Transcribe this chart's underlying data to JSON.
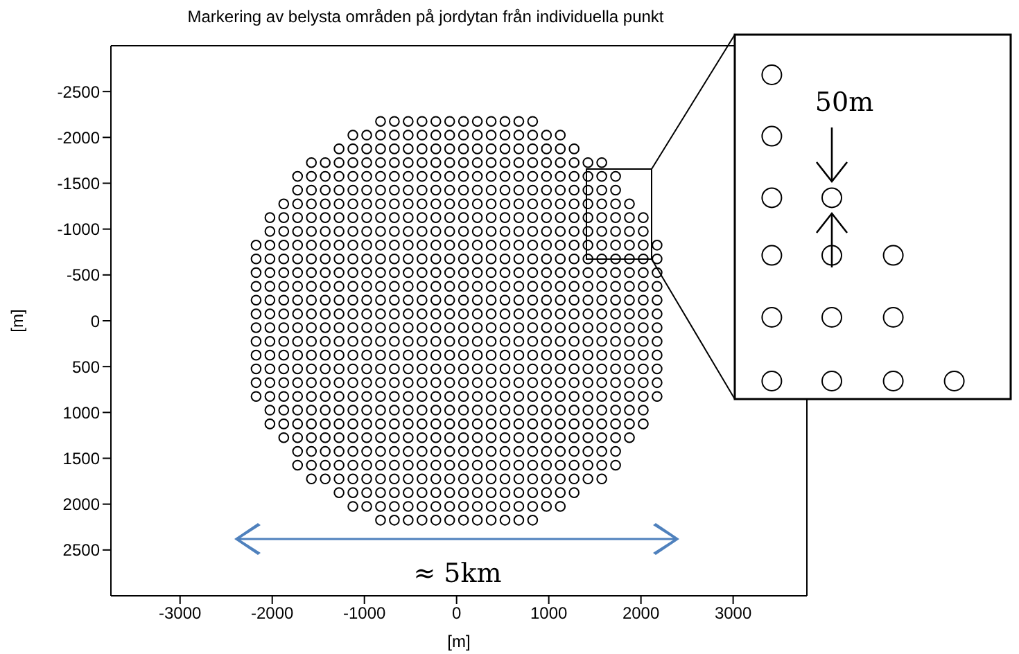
{
  "chart_data": {
    "type": "scatter",
    "title": "Markering av belysta områden på jordytan från individuella punkt",
    "xlabel": "[m]",
    "ylabel": "[m]",
    "annotations": [
      "50m",
      "≈ 5km"
    ],
    "color": "#000000",
    "marker": "circle",
    "xlim": [
      -3750,
      3800
    ],
    "ylim": [
      3000,
      -3000
    ],
    "xticks": [
      -3000,
      -2000,
      -1000,
      0,
      1000,
      2000,
      3000
    ],
    "yticks": [
      -2500,
      -2000,
      -1500,
      -1000,
      -500,
      0,
      500,
      1000,
      1500,
      2000,
      2500
    ],
    "series": [
      {
        "x": [
          -825,
          -675,
          -525,
          -375,
          -225,
          -75,
          75,
          225,
          375,
          525,
          675,
          825
        ],
        "values": [
          -2175,
          -2175,
          -2175,
          -2175,
          -2175,
          -2175,
          -2175,
          -2175,
          -2175,
          -2175,
          -2175,
          -2175
        ]
      },
      {
        "x": [
          -1125,
          -975,
          -825,
          -675,
          -525,
          -375,
          -225,
          -75,
          75,
          225,
          375,
          525,
          675,
          825,
          975,
          1125
        ],
        "values": [
          -2025,
          -2025,
          -2025,
          -2025,
          -2025,
          -2025,
          -2025,
          -2025,
          -2025,
          -2025,
          -2025,
          -2025,
          -2025,
          -2025,
          -2025,
          -2025
        ]
      },
      {
        "x": [
          -1275,
          -1125,
          -975,
          -825,
          -675,
          -525,
          -375,
          -225,
          -75,
          75,
          225,
          375,
          525,
          675,
          825,
          975,
          1125,
          1275
        ],
        "values": [
          -1875,
          -1875,
          -1875,
          -1875,
          -1875,
          -1875,
          -1875,
          -1875,
          -1875,
          -1875,
          -1875,
          -1875,
          -1875,
          -1875,
          -1875,
          -1875,
          -1875,
          -1875
        ]
      },
      {
        "x": [
          -1575,
          -1425,
          -1275,
          -1125,
          -975,
          -825,
          -675,
          -525,
          -375,
          -225,
          -75,
          75,
          225,
          375,
          525,
          675,
          825,
          975,
          1125,
          1275,
          1425,
          1575
        ],
        "values": [
          -1725,
          -1725,
          -1725,
          -1725,
          -1725,
          -1725,
          -1725,
          -1725,
          -1725,
          -1725,
          -1725,
          -1725,
          -1725,
          -1725,
          -1725,
          -1725,
          -1725,
          -1725,
          -1725,
          -1725,
          -1725,
          -1725
        ]
      },
      {
        "x": [
          -1725,
          -1575,
          -1425,
          -1275,
          -1125,
          -975,
          -825,
          -675,
          -525,
          -375,
          -225,
          -75,
          75,
          225,
          375,
          525,
          675,
          825,
          975,
          1125,
          1275,
          1425,
          1575,
          1725
        ],
        "values": [
          -1575,
          -1575,
          -1575,
          -1575,
          -1575,
          -1575,
          -1575,
          -1575,
          -1575,
          -1575,
          -1575,
          -1575,
          -1575,
          -1575,
          -1575,
          -1575,
          -1575,
          -1575,
          -1575,
          -1575,
          -1575,
          -1575,
          -1575,
          -1575
        ]
      },
      {
        "x": [
          -1725,
          -1575,
          -1425,
          -1275,
          -1125,
          -975,
          -825,
          -675,
          -525,
          -375,
          -225,
          -75,
          75,
          225,
          375,
          525,
          675,
          825,
          975,
          1125,
          1275,
          1425,
          1575,
          1725
        ],
        "values": [
          -1425,
          -1425,
          -1425,
          -1425,
          -1425,
          -1425,
          -1425,
          -1425,
          -1425,
          -1425,
          -1425,
          -1425,
          -1425,
          -1425,
          -1425,
          -1425,
          -1425,
          -1425,
          -1425,
          -1425,
          -1425,
          -1425,
          -1425,
          -1425
        ]
      },
      {
        "x": [
          -1875,
          -1725,
          -1575,
          -1425,
          -1275,
          -1125,
          -975,
          -825,
          -675,
          -525,
          -375,
          -225,
          -75,
          75,
          225,
          375,
          525,
          675,
          825,
          975,
          1125,
          1275,
          1425,
          1575,
          1725,
          1875
        ],
        "values": [
          -1275,
          -1275,
          -1275,
          -1275,
          -1275,
          -1275,
          -1275,
          -1275,
          -1275,
          -1275,
          -1275,
          -1275,
          -1275,
          -1275,
          -1275,
          -1275,
          -1275,
          -1275,
          -1275,
          -1275,
          -1275,
          -1275,
          -1275,
          -1275,
          -1275,
          -1275
        ]
      },
      {
        "x": [
          -2025,
          -1875,
          -1725,
          -1575,
          -1425,
          -1275,
          -1125,
          -975,
          -825,
          -675,
          -525,
          -375,
          -225,
          -75,
          75,
          225,
          375,
          525,
          675,
          825,
          975,
          1125,
          1275,
          1425,
          1575,
          1725,
          1875,
          2025
        ],
        "values": [
          -1125,
          -1125,
          -1125,
          -1125,
          -1125,
          -1125,
          -1125,
          -1125,
          -1125,
          -1125,
          -1125,
          -1125,
          -1125,
          -1125,
          -1125,
          -1125,
          -1125,
          -1125,
          -1125,
          -1125,
          -1125,
          -1125,
          -1125,
          -1125,
          -1125,
          -1125,
          -1125,
          -1125
        ]
      },
      {
        "x": [
          -2025,
          -1875,
          -1725,
          -1575,
          -1425,
          -1275,
          -1125,
          -975,
          -825,
          -675,
          -525,
          -375,
          -225,
          -75,
          75,
          225,
          375,
          525,
          675,
          825,
          975,
          1125,
          1275,
          1425,
          1575,
          1725,
          1875,
          2025
        ],
        "values": [
          -975,
          -975,
          -975,
          -975,
          -975,
          -975,
          -975,
          -975,
          -975,
          -975,
          -975,
          -975,
          -975,
          -975,
          -975,
          -975,
          -975,
          -975,
          -975,
          -975,
          -975,
          -975,
          -975,
          -975,
          -975,
          -975,
          -975,
          -975
        ]
      },
      {
        "x": [
          -2175,
          -2025,
          -1875,
          -1725,
          -1575,
          -1425,
          -1275,
          -1125,
          -975,
          -825,
          -675,
          -525,
          -375,
          -225,
          -75,
          75,
          225,
          375,
          525,
          675,
          825,
          975,
          1125,
          1275,
          1425,
          1575,
          1725,
          1875,
          2025,
          2175
        ],
        "values": [
          -825,
          -825,
          -825,
          -825,
          -825,
          -825,
          -825,
          -825,
          -825,
          -825,
          -825,
          -825,
          -825,
          -825,
          -825,
          -825,
          -825,
          -825,
          -825,
          -825,
          -825,
          -825,
          -825,
          -825,
          -825,
          -825,
          -825,
          -825,
          -825,
          -825
        ]
      },
      {
        "x": [
          -2175,
          -2025,
          -1875,
          -1725,
          -1575,
          -1425,
          -1275,
          -1125,
          -975,
          -825,
          -675,
          -525,
          -375,
          -225,
          -75,
          75,
          225,
          375,
          525,
          675,
          825,
          975,
          1125,
          1275,
          1425,
          1575,
          1725,
          1875,
          2025,
          2175
        ],
        "values": [
          -675,
          -675,
          -675,
          -675,
          -675,
          -675,
          -675,
          -675,
          -675,
          -675,
          -675,
          -675,
          -675,
          -675,
          -675,
          -675,
          -675,
          -675,
          -675,
          -675,
          -675,
          -675,
          -675,
          -675,
          -675,
          -675,
          -675,
          -675,
          -675,
          -675
        ]
      },
      {
        "x": [
          -2175,
          -2025,
          -1875,
          -1725,
          -1575,
          -1425,
          -1275,
          -1125,
          -975,
          -825,
          -675,
          -525,
          -375,
          -225,
          -75,
          75,
          225,
          375,
          525,
          675,
          825,
          975,
          1125,
          1275,
          1425,
          1575,
          1725,
          1875,
          2025,
          2175
        ],
        "values": [
          -525,
          -525,
          -525,
          -525,
          -525,
          -525,
          -525,
          -525,
          -525,
          -525,
          -525,
          -525,
          -525,
          -525,
          -525,
          -525,
          -525,
          -525,
          -525,
          -525,
          -525,
          -525,
          -525,
          -525,
          -525,
          -525,
          -525,
          -525,
          -525,
          -525
        ]
      },
      {
        "x": [
          -2175,
          -2025,
          -1875,
          -1725,
          -1575,
          -1425,
          -1275,
          -1125,
          -975,
          -825,
          -675,
          -525,
          -375,
          -225,
          -75,
          75,
          225,
          375,
          525,
          675,
          825,
          975,
          1125,
          1275,
          1425,
          1575,
          1725,
          1875,
          2025,
          2175
        ],
        "values": [
          -375,
          -375,
          -375,
          -375,
          -375,
          -375,
          -375,
          -375,
          -375,
          -375,
          -375,
          -375,
          -375,
          -375,
          -375,
          -375,
          -375,
          -375,
          -375,
          -375,
          -375,
          -375,
          -375,
          -375,
          -375,
          -375,
          -375,
          -375,
          -375,
          -375
        ]
      },
      {
        "x": [
          -2175,
          -2025,
          -1875,
          -1725,
          -1575,
          -1425,
          -1275,
          -1125,
          -975,
          -825,
          -675,
          -525,
          -375,
          -225,
          -75,
          75,
          225,
          375,
          525,
          675,
          825,
          975,
          1125,
          1275,
          1425,
          1575,
          1725,
          1875,
          2025,
          2175
        ],
        "values": [
          -225,
          -225,
          -225,
          -225,
          -225,
          -225,
          -225,
          -225,
          -225,
          -225,
          -225,
          -225,
          -225,
          -225,
          -225,
          -225,
          -225,
          -225,
          -225,
          -225,
          -225,
          -225,
          -225,
          -225,
          -225,
          -225,
          -225,
          -225,
          -225,
          -225
        ]
      },
      {
        "x": [
          -2175,
          -2025,
          -1875,
          -1725,
          -1575,
          -1425,
          -1275,
          -1125,
          -975,
          -825,
          -675,
          -525,
          -375,
          -225,
          -75,
          75,
          225,
          375,
          525,
          675,
          825,
          975,
          1125,
          1275,
          1425,
          1575,
          1725,
          1875,
          2025,
          2175
        ],
        "values": [
          -75,
          -75,
          -75,
          -75,
          -75,
          -75,
          -75,
          -75,
          -75,
          -75,
          -75,
          -75,
          -75,
          -75,
          -75,
          -75,
          -75,
          -75,
          -75,
          -75,
          -75,
          -75,
          -75,
          -75,
          -75,
          -75,
          -75,
          -75,
          -75,
          -75
        ]
      },
      {
        "x": [
          -2175,
          -2025,
          -1875,
          -1725,
          -1575,
          -1425,
          -1275,
          -1125,
          -975,
          -825,
          -675,
          -525,
          -375,
          -225,
          -75,
          75,
          225,
          375,
          525,
          675,
          825,
          975,
          1125,
          1275,
          1425,
          1575,
          1725,
          1875,
          2025,
          2175
        ],
        "values": [
          75,
          75,
          75,
          75,
          75,
          75,
          75,
          75,
          75,
          75,
          75,
          75,
          75,
          75,
          75,
          75,
          75,
          75,
          75,
          75,
          75,
          75,
          75,
          75,
          75,
          75,
          75,
          75,
          75,
          75
        ]
      },
      {
        "x": [
          -2175,
          -2025,
          -1875,
          -1725,
          -1575,
          -1425,
          -1275,
          -1125,
          -975,
          -825,
          -675,
          -525,
          -375,
          -225,
          -75,
          75,
          225,
          375,
          525,
          675,
          825,
          975,
          1125,
          1275,
          1425,
          1575,
          1725,
          1875,
          2025,
          2175
        ],
        "values": [
          225,
          225,
          225,
          225,
          225,
          225,
          225,
          225,
          225,
          225,
          225,
          225,
          225,
          225,
          225,
          225,
          225,
          225,
          225,
          225,
          225,
          225,
          225,
          225,
          225,
          225,
          225,
          225,
          225,
          225
        ]
      },
      {
        "x": [
          -2175,
          -2025,
          -1875,
          -1725,
          -1575,
          -1425,
          -1275,
          -1125,
          -975,
          -825,
          -675,
          -525,
          -375,
          -225,
          -75,
          75,
          225,
          375,
          525,
          675,
          825,
          975,
          1125,
          1275,
          1425,
          1575,
          1725,
          1875,
          2025,
          2175
        ],
        "values": [
          375,
          375,
          375,
          375,
          375,
          375,
          375,
          375,
          375,
          375,
          375,
          375,
          375,
          375,
          375,
          375,
          375,
          375,
          375,
          375,
          375,
          375,
          375,
          375,
          375,
          375,
          375,
          375,
          375,
          375
        ]
      },
      {
        "x": [
          -2175,
          -2025,
          -1875,
          -1725,
          -1575,
          -1425,
          -1275,
          -1125,
          -975,
          -825,
          -675,
          -525,
          -375,
          -225,
          -75,
          75,
          225,
          375,
          525,
          675,
          825,
          975,
          1125,
          1275,
          1425,
          1575,
          1725,
          1875,
          2025,
          2175
        ],
        "values": [
          525,
          525,
          525,
          525,
          525,
          525,
          525,
          525,
          525,
          525,
          525,
          525,
          525,
          525,
          525,
          525,
          525,
          525,
          525,
          525,
          525,
          525,
          525,
          525,
          525,
          525,
          525,
          525,
          525,
          525
        ]
      },
      {
        "x": [
          -2175,
          -2025,
          -1875,
          -1725,
          -1575,
          -1425,
          -1275,
          -1125,
          -975,
          -825,
          -675,
          -525,
          -375,
          -225,
          -75,
          75,
          225,
          375,
          525,
          675,
          825,
          975,
          1125,
          1275,
          1425,
          1575,
          1725,
          1875,
          2025,
          2175
        ],
        "values": [
          675,
          675,
          675,
          675,
          675,
          675,
          675,
          675,
          675,
          675,
          675,
          675,
          675,
          675,
          675,
          675,
          675,
          675,
          675,
          675,
          675,
          675,
          675,
          675,
          675,
          675,
          675,
          675,
          675,
          675
        ]
      },
      {
        "x": [
          -2175,
          -2025,
          -1875,
          -1725,
          -1575,
          -1425,
          -1275,
          -1125,
          -975,
          -825,
          -675,
          -525,
          -375,
          -225,
          -75,
          75,
          225,
          375,
          525,
          675,
          825,
          975,
          1125,
          1275,
          1425,
          1575,
          1725,
          1875,
          2025,
          2175
        ],
        "values": [
          825,
          825,
          825,
          825,
          825,
          825,
          825,
          825,
          825,
          825,
          825,
          825,
          825,
          825,
          825,
          825,
          825,
          825,
          825,
          825,
          825,
          825,
          825,
          825,
          825,
          825,
          825,
          825,
          825,
          825
        ]
      },
      {
        "x": [
          -2025,
          -1875,
          -1725,
          -1575,
          -1425,
          -1275,
          -1125,
          -975,
          -825,
          -675,
          -525,
          -375,
          -225,
          -75,
          75,
          225,
          375,
          525,
          675,
          825,
          975,
          1125,
          1275,
          1425,
          1575,
          1725,
          1875,
          2025
        ],
        "values": [
          975,
          975,
          975,
          975,
          975,
          975,
          975,
          975,
          975,
          975,
          975,
          975,
          975,
          975,
          975,
          975,
          975,
          975,
          975,
          975,
          975,
          975,
          975,
          975,
          975,
          975,
          975,
          975
        ]
      },
      {
        "x": [
          -2025,
          -1875,
          -1725,
          -1575,
          -1425,
          -1275,
          -1125,
          -975,
          -825,
          -675,
          -525,
          -375,
          -225,
          -75,
          75,
          225,
          375,
          525,
          675,
          825,
          975,
          1125,
          1275,
          1425,
          1575,
          1725,
          1875,
          2025
        ],
        "values": [
          1125,
          1125,
          1125,
          1125,
          1125,
          1125,
          1125,
          1125,
          1125,
          1125,
          1125,
          1125,
          1125,
          1125,
          1125,
          1125,
          1125,
          1125,
          1125,
          1125,
          1125,
          1125,
          1125,
          1125,
          1125,
          1125,
          1125,
          1125
        ]
      },
      {
        "x": [
          -1875,
          -1725,
          -1575,
          -1425,
          -1275,
          -1125,
          -975,
          -825,
          -675,
          -525,
          -375,
          -225,
          -75,
          75,
          225,
          375,
          525,
          675,
          825,
          975,
          1125,
          1275,
          1425,
          1575,
          1725,
          1875
        ],
        "values": [
          1275,
          1275,
          1275,
          1275,
          1275,
          1275,
          1275,
          1275,
          1275,
          1275,
          1275,
          1275,
          1275,
          1275,
          1275,
          1275,
          1275,
          1275,
          1275,
          1275,
          1275,
          1275,
          1275,
          1275,
          1275,
          1275
        ]
      },
      {
        "x": [
          -1725,
          -1575,
          -1425,
          -1275,
          -1125,
          -975,
          -825,
          -675,
          -525,
          -375,
          -225,
          -75,
          75,
          225,
          375,
          525,
          675,
          825,
          975,
          1125,
          1275,
          1425,
          1575,
          1725
        ],
        "values": [
          1425,
          1425,
          1425,
          1425,
          1425,
          1425,
          1425,
          1425,
          1425,
          1425,
          1425,
          1425,
          1425,
          1425,
          1425,
          1425,
          1425,
          1425,
          1425,
          1425,
          1425,
          1425,
          1425,
          1425
        ]
      },
      {
        "x": [
          -1725,
          -1575,
          -1425,
          -1275,
          -1125,
          -975,
          -825,
          -675,
          -525,
          -375,
          -225,
          -75,
          75,
          225,
          375,
          525,
          675,
          825,
          975,
          1125,
          1275,
          1425,
          1575,
          1725
        ],
        "values": [
          1575,
          1575,
          1575,
          1575,
          1575,
          1575,
          1575,
          1575,
          1575,
          1575,
          1575,
          1575,
          1575,
          1575,
          1575,
          1575,
          1575,
          1575,
          1575,
          1575,
          1575,
          1575,
          1575,
          1575
        ]
      },
      {
        "x": [
          -1575,
          -1425,
          -1275,
          -1125,
          -975,
          -825,
          -675,
          -525,
          -375,
          -225,
          -75,
          75,
          225,
          375,
          525,
          675,
          825,
          975,
          1125,
          1275,
          1425,
          1575
        ],
        "values": [
          1725,
          1725,
          1725,
          1725,
          1725,
          1725,
          1725,
          1725,
          1725,
          1725,
          1725,
          1725,
          1725,
          1725,
          1725,
          1725,
          1725,
          1725,
          1725,
          1725,
          1725,
          1725
        ]
      },
      {
        "x": [
          -1275,
          -1125,
          -975,
          -825,
          -675,
          -525,
          -375,
          -225,
          -75,
          75,
          225,
          375,
          525,
          675,
          825,
          975,
          1125,
          1275
        ],
        "values": [
          1875,
          1875,
          1875,
          1875,
          1875,
          1875,
          1875,
          1875,
          1875,
          1875,
          1875,
          1875,
          1875,
          1875,
          1875,
          1875,
          1875,
          1875
        ]
      },
      {
        "x": [
          -1125,
          -975,
          -825,
          -675,
          -525,
          -375,
          -225,
          -75,
          75,
          225,
          375,
          525,
          675,
          825,
          975,
          1125
        ],
        "values": [
          2025,
          2025,
          2025,
          2025,
          2025,
          2025,
          2025,
          2025,
          2025,
          2025,
          2025,
          2025,
          2025,
          2025,
          2025,
          2025
        ]
      },
      {
        "x": [
          -825,
          -675,
          -525,
          -375,
          -225,
          -75,
          75,
          225,
          375,
          525,
          675,
          825
        ],
        "values": [
          2175,
          2175,
          2175,
          2175,
          2175,
          2175,
          2175,
          2175,
          2175,
          2175,
          2175,
          2175
        ]
      }
    ]
  }
}
